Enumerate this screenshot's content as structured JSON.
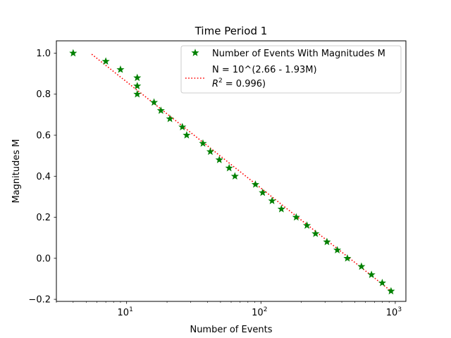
{
  "chart_data": {
    "type": "scatter",
    "title": "Time Period 1",
    "xlabel": "Number of Events",
    "ylabel": "Magnitudes M",
    "x_scale": "log",
    "xlim": [
      3,
      1200
    ],
    "ylim": [
      -0.21,
      1.06
    ],
    "x_ticks": [
      {
        "value": 10,
        "label": "10",
        "exp": "1"
      },
      {
        "value": 100,
        "label": "10",
        "exp": "2"
      },
      {
        "value": 1000,
        "label": "10",
        "exp": "3"
      }
    ],
    "y_ticks": [
      {
        "value": 1.0,
        "label": "1.0"
      },
      {
        "value": 0.8,
        "label": "0.8"
      },
      {
        "value": 0.6,
        "label": "0.6"
      },
      {
        "value": 0.4,
        "label": "0.4"
      },
      {
        "value": 0.2,
        "label": "0.2"
      },
      {
        "value": 0.0,
        "label": "0.0"
      },
      {
        "value": -0.2,
        "label": "−0.2"
      }
    ],
    "grid": false,
    "legend_position": "top-right",
    "series": [
      {
        "name": "Number of Events With Magnitudes M",
        "marker": "star",
        "color": "#008000",
        "points": [
          {
            "x": 4,
            "y": 1.0
          },
          {
            "x": 7,
            "y": 0.96
          },
          {
            "x": 9,
            "y": 0.92
          },
          {
            "x": 12,
            "y": 0.88
          },
          {
            "x": 12,
            "y": 0.84
          },
          {
            "x": 12,
            "y": 0.8
          },
          {
            "x": 16,
            "y": 0.76
          },
          {
            "x": 18,
            "y": 0.72
          },
          {
            "x": 21,
            "y": 0.68
          },
          {
            "x": 26,
            "y": 0.64
          },
          {
            "x": 28,
            "y": 0.6
          },
          {
            "x": 37,
            "y": 0.56
          },
          {
            "x": 42,
            "y": 0.52
          },
          {
            "x": 49,
            "y": 0.48
          },
          {
            "x": 58,
            "y": 0.44
          },
          {
            "x": 64,
            "y": 0.4
          },
          {
            "x": 91,
            "y": 0.36
          },
          {
            "x": 103,
            "y": 0.32
          },
          {
            "x": 121,
            "y": 0.28
          },
          {
            "x": 142,
            "y": 0.24
          },
          {
            "x": 183,
            "y": 0.2
          },
          {
            "x": 220,
            "y": 0.16
          },
          {
            "x": 255,
            "y": 0.12
          },
          {
            "x": 310,
            "y": 0.08
          },
          {
            "x": 370,
            "y": 0.04
          },
          {
            "x": 440,
            "y": 0.0
          },
          {
            "x": 560,
            "y": -0.04
          },
          {
            "x": 665,
            "y": -0.08
          },
          {
            "x": 800,
            "y": -0.12
          },
          {
            "x": 930,
            "y": -0.16
          }
        ]
      },
      {
        "name": "N = 10^(2.66 - 1.93M)",
        "name_line2": "= 0.996)",
        "r2_symbol": "R",
        "r2_exp": "2",
        "style": "dotted",
        "color": "#ff0000",
        "fit": {
          "a": 2.66,
          "b": 1.93
        },
        "x_range": [
          5.5,
          950
        ]
      }
    ]
  }
}
